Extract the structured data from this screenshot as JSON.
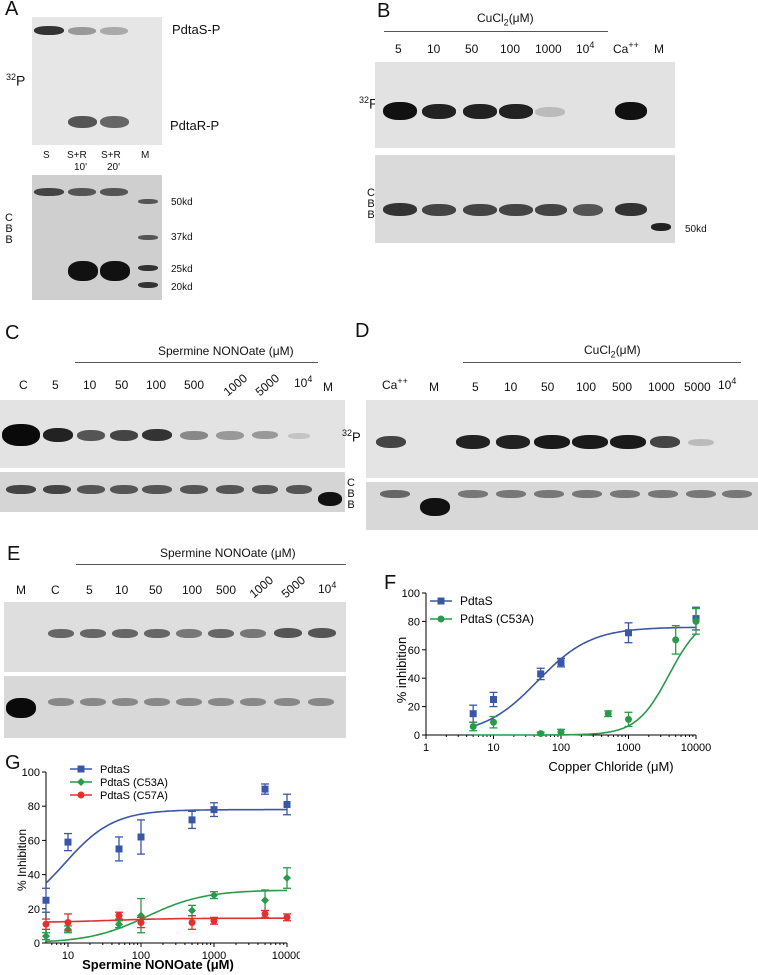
{
  "panels": {
    "A": "A",
    "B": "B",
    "C": "C",
    "D": "D",
    "E": "E",
    "F": "F",
    "G": "G"
  },
  "panelA": {
    "label_32p": "32P",
    "band_top": "PdtaS-P",
    "band_bottom": "PdtaR-P",
    "lanes": [
      "S",
      "S+R",
      "S+R",
      "M"
    ],
    "lane_times": [
      "10'",
      "20'"
    ],
    "markers": [
      "50kd",
      "37kd",
      "25kd",
      "20kd"
    ],
    "cbb": [
      "C",
      "B",
      "B"
    ]
  },
  "panelB": {
    "reagent": "CuCl2(μM)",
    "lanes": [
      "5",
      "10",
      "50",
      "100",
      "1000",
      "10^4",
      "Ca++",
      "M"
    ],
    "label_32p": "32P",
    "cbb": [
      "C",
      "B",
      "B"
    ],
    "marker": "50kd"
  },
  "panelC": {
    "reagent": "Spermine NONOate (μM)",
    "lanes": [
      "C",
      "5",
      "10",
      "50",
      "100",
      "500",
      "1000",
      "5000",
      "10^4",
      "M"
    ],
    "cbb": [
      "C",
      "B",
      "B"
    ]
  },
  "panelD": {
    "reagent": "CuCl2(μM)",
    "lanes": [
      "Ca++",
      "M",
      "5",
      "10",
      "50",
      "100",
      "500",
      "1000",
      "5000",
      "10^4"
    ],
    "label_32p": "32P"
  },
  "panelE": {
    "reagent": "Spermine NONOate (μM)",
    "lanes": [
      "M",
      "C",
      "5",
      "10",
      "50",
      "100",
      "500",
      "1000",
      "5000",
      "10^4"
    ]
  },
  "chart_data": [
    {
      "panel": "F",
      "type": "scatter",
      "xlabel": "Copper Chloride (μM)",
      "ylabel": "% inhibition",
      "xscale": "log",
      "xlim": [
        1,
        10000
      ],
      "ylim": [
        0,
        100
      ],
      "xticks": [
        "1",
        "10",
        "100",
        "1000",
        "10000"
      ],
      "yticks": [
        "0",
        "20",
        "40",
        "60",
        "80",
        "100"
      ],
      "legend": "top-left",
      "series": [
        {
          "name": "PdtaS",
          "color": "#3a57a7",
          "marker": "square",
          "x": [
            5,
            10,
            50,
            100,
            1000,
            10000
          ],
          "y": [
            15,
            25,
            43,
            51,
            72,
            82
          ],
          "err": [
            6,
            5,
            4,
            3,
            7,
            8
          ]
        },
        {
          "name": "PdtaS (C53A)",
          "color": "#2a9a4a",
          "marker": "circle",
          "x": [
            5,
            10,
            50,
            100,
            500,
            1000,
            5000,
            10000
          ],
          "y": [
            6,
            9,
            1,
            2,
            15,
            11,
            67,
            80
          ],
          "err": [
            3,
            4,
            1,
            2,
            2,
            5,
            10,
            9
          ]
        }
      ]
    },
    {
      "panel": "G",
      "type": "scatter",
      "xlabel": "Spermine NONOate (μM)",
      "ylabel": "% Inhibition",
      "xscale": "log",
      "xlim": [
        5,
        10000
      ],
      "ylim": [
        0,
        100
      ],
      "xticks": [
        "10",
        "100",
        "1000",
        "10000"
      ],
      "yticks": [
        "0",
        "20",
        "40",
        "60",
        "80",
        "100"
      ],
      "legend": "top-left",
      "series": [
        {
          "name": "PdtaS",
          "color": "#3a57a7",
          "marker": "square",
          "x": [
            5,
            10,
            50,
            100,
            500,
            1000,
            5000,
            10000
          ],
          "y": [
            25,
            59,
            55,
            62,
            72,
            78,
            90,
            81
          ],
          "err": [
            7,
            5,
            7,
            10,
            5,
            4,
            3,
            6
          ]
        },
        {
          "name": "PdtaS (C53A)",
          "color": "#2a9a4a",
          "marker": "diamond",
          "x": [
            5,
            10,
            50,
            100,
            500,
            1000,
            5000,
            10000
          ],
          "y": [
            4,
            8,
            11,
            16,
            19,
            28,
            25,
            38
          ],
          "err": [
            2,
            2,
            2,
            10,
            3,
            2,
            6,
            6
          ]
        },
        {
          "name": "PdtaS (C57A)",
          "color": "#e03030",
          "marker": "circle",
          "x": [
            5,
            10,
            50,
            100,
            500,
            1000,
            5000,
            10000
          ],
          "y": [
            11,
            12,
            16,
            12,
            12,
            13,
            17,
            15
          ],
          "err": [
            3,
            5,
            2,
            3,
            4,
            2,
            2,
            2
          ]
        }
      ]
    }
  ]
}
